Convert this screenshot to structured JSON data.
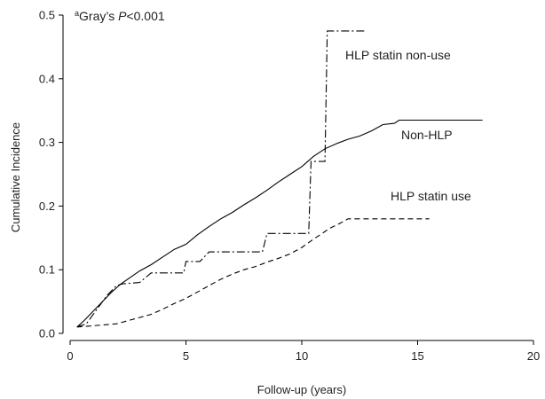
{
  "chart_data": {
    "type": "line",
    "title": "",
    "xlabel": "Follow-up (years)",
    "ylabel": "Cumulative Incidence",
    "xlim": [
      0,
      20
    ],
    "ylim": [
      0,
      0.5
    ],
    "xticks": [
      0,
      5,
      10,
      15,
      20
    ],
    "yticks": [
      0.0,
      0.1,
      0.2,
      0.3,
      0.4,
      0.5
    ],
    "ytick_labels": [
      "0.0",
      "0.1",
      "0.2",
      "0.3",
      "0.4",
      "0.5"
    ],
    "grid": false,
    "annotation": {
      "superscript": "a",
      "text_prefix": "Gray’s ",
      "italic": "P",
      "text_suffix": "<0.001"
    },
    "series": [
      {
        "name": "Non-HLP",
        "style": "solid",
        "x": [
          0.3,
          0.6,
          1.0,
          1.4,
          1.8,
          2.2,
          2.6,
          3.0,
          3.5,
          4.0,
          4.5,
          5.0,
          5.5,
          6.0,
          6.5,
          7.0,
          7.5,
          8.0,
          8.5,
          9.0,
          9.5,
          10.0,
          10.5,
          11.0,
          11.5,
          12.0,
          12.5,
          13.0,
          13.5,
          14.0,
          14.2,
          17.8
        ],
        "y": [
          0.01,
          0.02,
          0.035,
          0.05,
          0.065,
          0.078,
          0.088,
          0.098,
          0.108,
          0.12,
          0.132,
          0.14,
          0.155,
          0.168,
          0.18,
          0.19,
          0.202,
          0.213,
          0.225,
          0.238,
          0.25,
          0.262,
          0.278,
          0.29,
          0.298,
          0.305,
          0.31,
          0.318,
          0.328,
          0.33,
          0.335,
          0.335
        ]
      },
      {
        "name": "HLP statin non-use",
        "style": "dashdot",
        "x": [
          0.3,
          0.7,
          1.2,
          1.6,
          2.0,
          2.3,
          3.0,
          3.5,
          4.9,
          5.0,
          5.6,
          6.0,
          8.3,
          8.5,
          10.3,
          10.4,
          11.0,
          11.1,
          12.7
        ],
        "y": [
          0.01,
          0.015,
          0.04,
          0.06,
          0.075,
          0.078,
          0.08,
          0.095,
          0.095,
          0.113,
          0.113,
          0.128,
          0.128,
          0.157,
          0.157,
          0.27,
          0.27,
          0.475,
          0.475
        ]
      },
      {
        "name": "HLP statin use",
        "style": "dashed",
        "x": [
          0.3,
          1.0,
          2.0,
          2.5,
          3.0,
          3.5,
          4.0,
          4.5,
          5.0,
          5.5,
          6.0,
          6.5,
          7.0,
          7.5,
          8.0,
          8.5,
          9.0,
          9.5,
          10.0,
          10.5,
          10.8,
          11.2,
          11.6,
          11.9,
          12.0,
          15.5
        ],
        "y": [
          0.01,
          0.012,
          0.015,
          0.02,
          0.025,
          0.03,
          0.038,
          0.047,
          0.055,
          0.065,
          0.075,
          0.085,
          0.093,
          0.1,
          0.105,
          0.112,
          0.118,
          0.125,
          0.135,
          0.148,
          0.155,
          0.165,
          0.172,
          0.178,
          0.18,
          0.18
        ]
      }
    ]
  }
}
